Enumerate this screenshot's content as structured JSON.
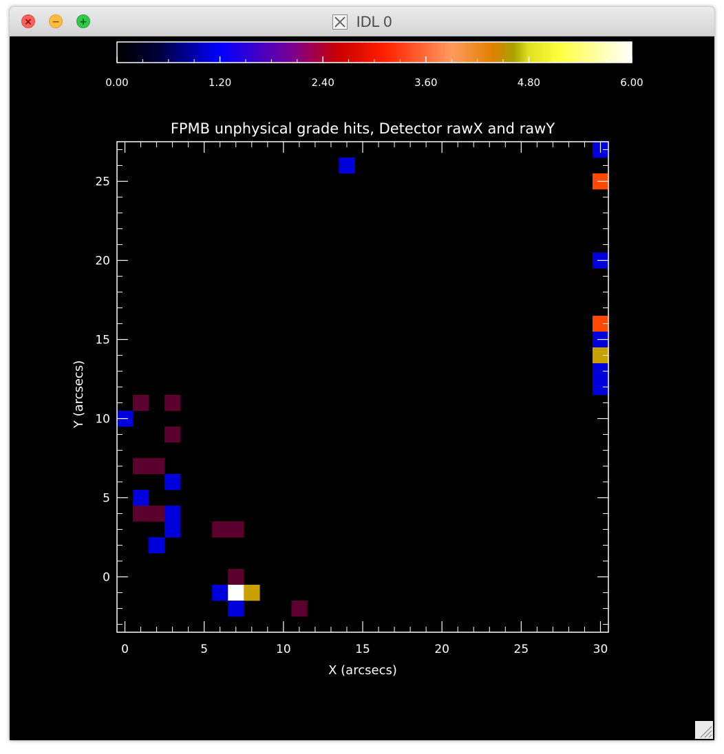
{
  "window": {
    "title": "IDL 0",
    "buttons": {
      "close": "×",
      "minimize": "−",
      "maximize": "+"
    }
  },
  "colorbar": {
    "ticks": [
      "0.00",
      "1.20",
      "2.40",
      "3.60",
      "4.80",
      "6.00"
    ],
    "range": [
      0,
      6
    ],
    "stops": [
      [
        0.0,
        "#000000"
      ],
      [
        0.08,
        "#000038"
      ],
      [
        0.2,
        "#0000ff"
      ],
      [
        0.34,
        "#7a0090"
      ],
      [
        0.43,
        "#c80000"
      ],
      [
        0.52,
        "#ff2000"
      ],
      [
        0.65,
        "#ff9a60"
      ],
      [
        0.73,
        "#e08000"
      ],
      [
        0.77,
        "#a8a000"
      ],
      [
        0.8,
        "#e0e020"
      ],
      [
        0.86,
        "#ffff40"
      ],
      [
        1.0,
        "#ffffff"
      ]
    ]
  },
  "chart_data": {
    "type": "heatmap",
    "title": "FPMB unphysical grade hits, Detector rawX and rawY",
    "xlabel": "X (arcsecs)",
    "ylabel": "Y (arcsecs)",
    "xlim": [
      -0.5,
      30.5
    ],
    "ylim": [
      -3.5,
      27.5
    ],
    "xticks": [
      0,
      5,
      10,
      15,
      20,
      25,
      30
    ],
    "yticks": [
      0,
      5,
      10,
      15,
      20,
      25
    ],
    "colors": {
      "1": "#0000dd",
      "2": "#5c0030",
      "3": "#ff4800",
      "4": "#c8a000",
      "6": "#ffffff"
    },
    "cells": [
      [
        14,
        26,
        1
      ],
      [
        30,
        27,
        1
      ],
      [
        30,
        25,
        3
      ],
      [
        30,
        20,
        1
      ],
      [
        30,
        16,
        3
      ],
      [
        30,
        15,
        1
      ],
      [
        30,
        14,
        4
      ],
      [
        30,
        13,
        1
      ],
      [
        30,
        12,
        1
      ],
      [
        1,
        11,
        2
      ],
      [
        3,
        11,
        2
      ],
      [
        0,
        10,
        1
      ],
      [
        3,
        9,
        2
      ],
      [
        1,
        7,
        2
      ],
      [
        2,
        7,
        2
      ],
      [
        3,
        6,
        1
      ],
      [
        1,
        5,
        1
      ],
      [
        1,
        4,
        2
      ],
      [
        2,
        4,
        2
      ],
      [
        3,
        4,
        1
      ],
      [
        3,
        3,
        1
      ],
      [
        6,
        3,
        2
      ],
      [
        7,
        3,
        2
      ],
      [
        2,
        2,
        1
      ],
      [
        7,
        0,
        2
      ],
      [
        6,
        -1,
        1
      ],
      [
        7,
        -1,
        6
      ],
      [
        8,
        -1,
        4
      ],
      [
        7,
        -2,
        1
      ],
      [
        11,
        -2,
        2
      ]
    ]
  }
}
